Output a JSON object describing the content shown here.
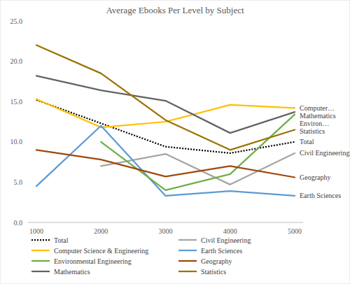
{
  "chart_data": {
    "type": "line",
    "title": "Average Ebooks Per Level by Subject",
    "categories": [
      "1000",
      "2000",
      "3000",
      "4000",
      "5000"
    ],
    "ylim": [
      0,
      25
    ],
    "yticks": [
      {
        "value": 0,
        "label": "0.0"
      },
      {
        "value": 5,
        "label": "5.0"
      },
      {
        "value": 10,
        "label": "10.0"
      },
      {
        "value": 15,
        "label": "15.0"
      },
      {
        "value": 20,
        "label": "20.0"
      },
      {
        "value": 25,
        "label": "25.0"
      }
    ],
    "grid": false,
    "legend": "bottom",
    "series": [
      {
        "name": "Total",
        "color": "#000000",
        "line_style": "dotted",
        "end_label": "Total",
        "values": [
          15.2,
          12.3,
          9.4,
          8.6,
          10.0
        ]
      },
      {
        "name": "Civil Engineering",
        "color": "#A5A5A5",
        "line_style": "solid",
        "end_label": "Civil Engineering",
        "values": [
          null,
          7.0,
          8.5,
          4.7,
          8.6
        ]
      },
      {
        "name": "Computer Science & Engineering",
        "color": "#FFC000",
        "line_style": "solid",
        "end_label": "Computer…",
        "values": [
          15.3,
          11.8,
          12.5,
          14.6,
          14.2
        ]
      },
      {
        "name": "Earth Sciences",
        "color": "#5B9BD5",
        "line_style": "solid",
        "end_label": "Earth Sciences",
        "values": [
          4.5,
          12.0,
          3.3,
          3.9,
          3.3
        ]
      },
      {
        "name": "Environmental Engineering",
        "color": "#70AD47",
        "line_style": "solid",
        "end_label": "Environ…",
        "values": [
          null,
          10.0,
          4.0,
          6.0,
          13.4
        ]
      },
      {
        "name": "Geography",
        "color": "#9E480E",
        "line_style": "solid",
        "end_label": "Geography",
        "values": [
          9.0,
          7.8,
          5.7,
          7.0,
          5.6
        ]
      },
      {
        "name": "Mathematics",
        "color": "#636363",
        "line_style": "solid",
        "end_label": "Mathematics",
        "values": [
          18.2,
          16.4,
          15.1,
          11.1,
          13.7
        ]
      },
      {
        "name": "Statistics",
        "color": "#997300",
        "line_style": "solid",
        "end_label": "Statistics",
        "values": [
          22.0,
          18.5,
          12.7,
          9.0,
          11.5
        ]
      }
    ]
  }
}
